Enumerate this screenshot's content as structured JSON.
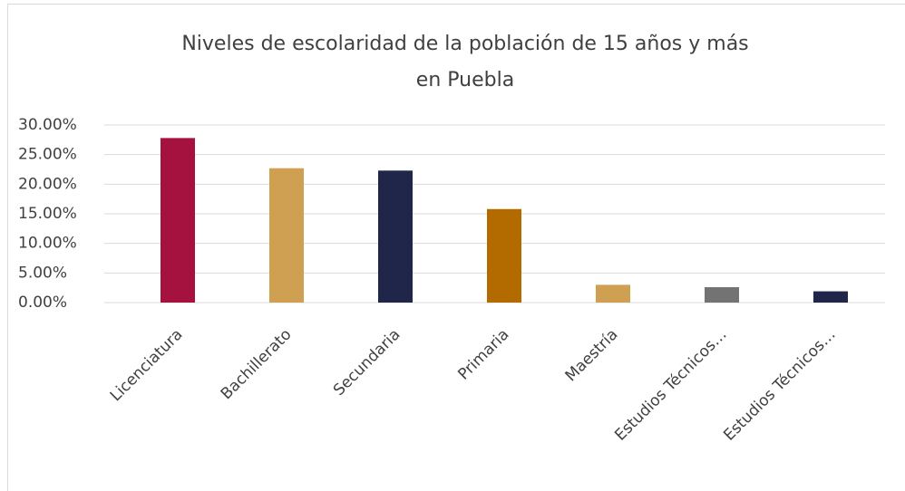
{
  "chart_data": {
    "type": "bar",
    "title": [
      "Niveles de escolaridad de la población de 15 años y más",
      "en Puebla"
    ],
    "categories": [
      "Licenciatura",
      "Bachillerato",
      "Secundaria",
      "Primaria",
      "Maestría",
      "Estudios Técnicos…",
      "Estudios Técnicos…"
    ],
    "values": [
      27.8,
      22.7,
      22.3,
      15.8,
      3.0,
      2.6,
      1.9
    ],
    "colors": [
      "#a6123f",
      "#cfa052",
      "#20264a",
      "#b36b00",
      "#cfa052",
      "#737373",
      "#20264a"
    ],
    "ylim": [
      0,
      30
    ],
    "yticks": [
      {
        "value": 0,
        "label": "0.00%"
      },
      {
        "value": 5,
        "label": "5.00%"
      },
      {
        "value": 10,
        "label": "10.00%"
      },
      {
        "value": 15,
        "label": "15.00%"
      },
      {
        "value": 20,
        "label": "20.00%"
      },
      {
        "value": 25,
        "label": "25.00%"
      },
      {
        "value": 30,
        "label": "30.00%"
      }
    ],
    "grid": true
  }
}
